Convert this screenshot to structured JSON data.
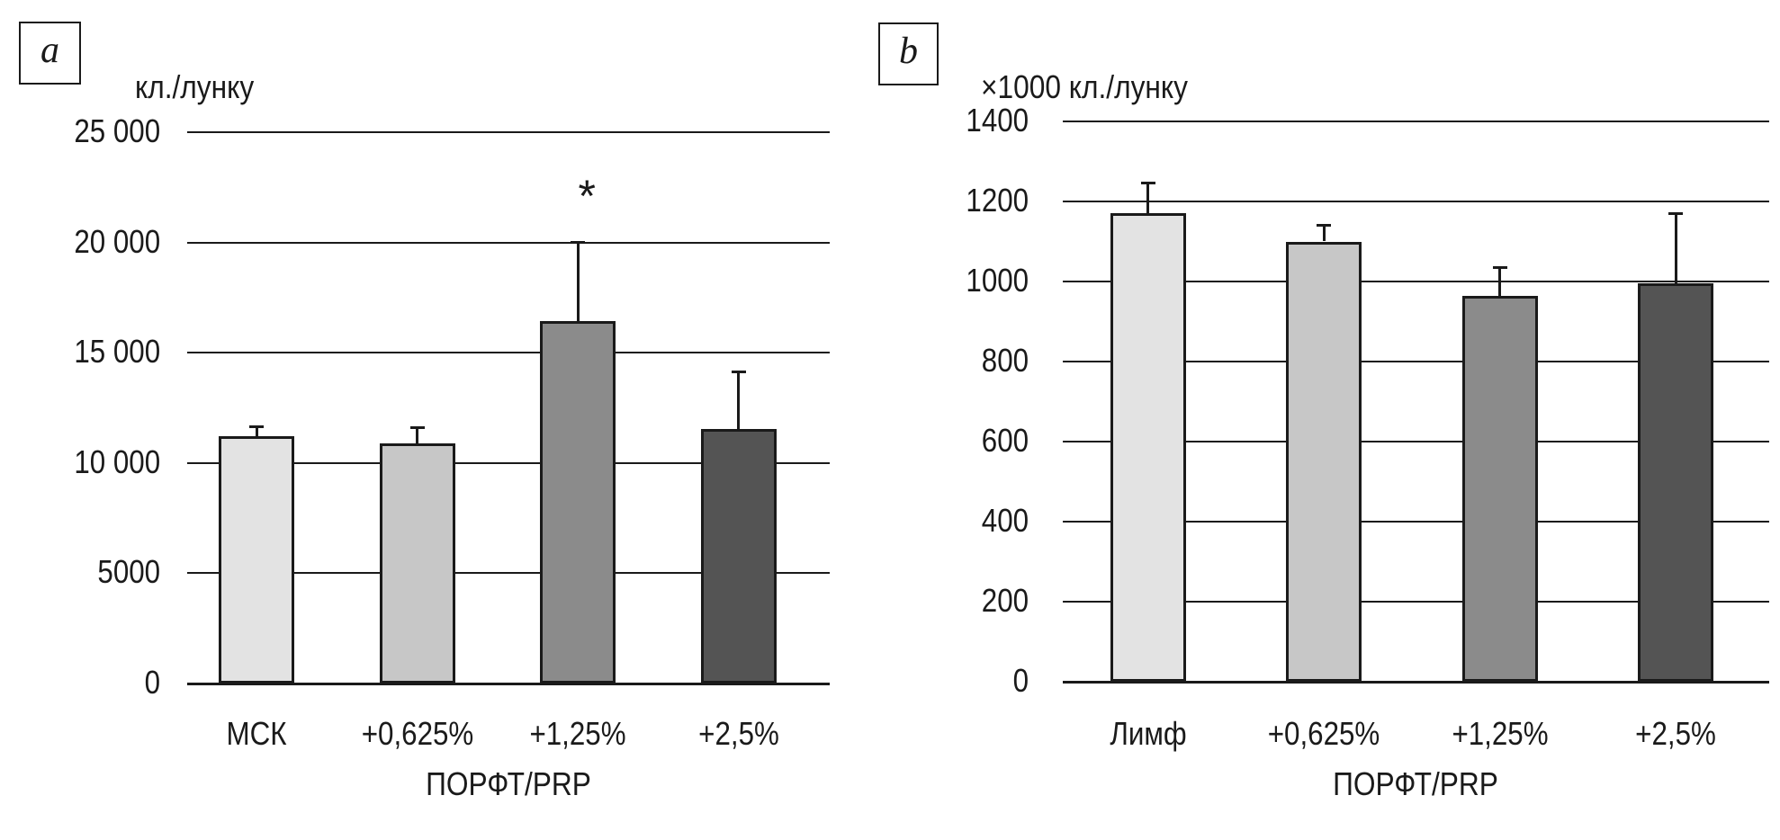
{
  "figure_colors": {
    "ink": "#1a1a1a",
    "background": "#ffffff",
    "bar_fills": [
      "#e3e3e3",
      "#c7c7c7",
      "#8b8b8b",
      "#545454"
    ]
  },
  "chart_data": [
    {
      "type": "bar",
      "panel_letter": "a",
      "unit_label": "кл./лунку",
      "xlabel": "ПОРФТ/PRP",
      "categories": [
        "МСК",
        "+0,625%",
        "+1,25%",
        "+2,5%"
      ],
      "values": [
        11200,
        10900,
        16450,
        11550
      ],
      "error_upper": [
        450,
        700,
        3550,
        2600
      ],
      "ylim": [
        0,
        25000
      ],
      "ytick_step": 5000,
      "ytick_labels": [
        "0",
        "5000",
        "10 000",
        "15 000",
        "20 000",
        "25 000"
      ],
      "grid": "horizontal",
      "legend": "none",
      "bar_colors": [
        "#e3e3e3",
        "#c7c7c7",
        "#8b8b8b",
        "#545454"
      ],
      "annotations": [
        {
          "text": "*",
          "category_index": 2,
          "y_value": 21940
        }
      ]
    },
    {
      "type": "bar",
      "panel_letter": "b",
      "unit_label": "×1000 кл./лунку",
      "xlabel": "ПОРФТ/PRP",
      "categories": [
        "Лимф",
        "+0,625%",
        "+1,25%",
        "+2,5%"
      ],
      "values": [
        1170,
        1100,
        965,
        995
      ],
      "error_upper": [
        75,
        40,
        70,
        175
      ],
      "ylim": [
        0,
        1400
      ],
      "ytick_step": 200,
      "ytick_labels": [
        "0",
        "200",
        "400",
        "600",
        "800",
        "1000",
        "1200",
        "1400"
      ],
      "grid": "horizontal",
      "legend": "none",
      "bar_colors": [
        "#e3e3e3",
        "#c7c7c7",
        "#8b8b8b",
        "#545454"
      ],
      "annotations": []
    }
  ]
}
